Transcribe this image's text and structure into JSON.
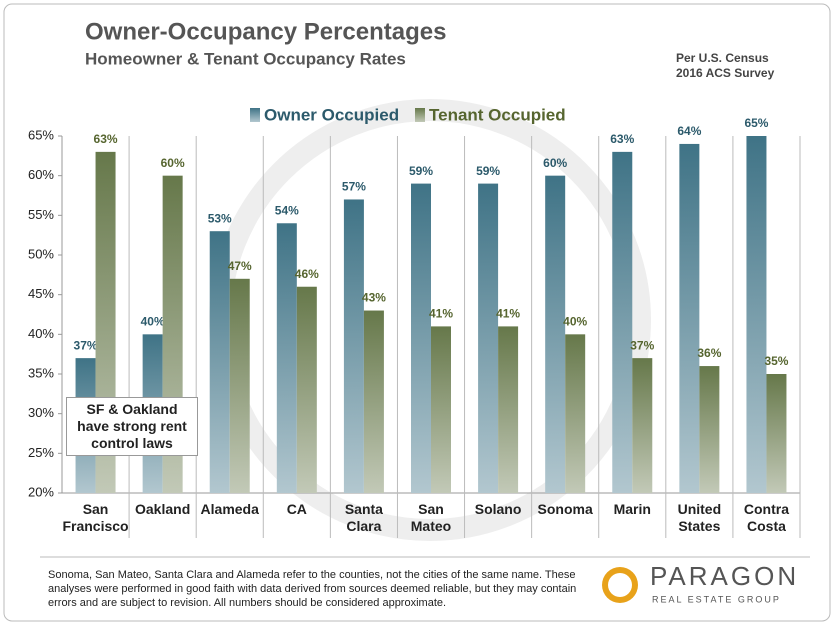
{
  "chart_data": {
    "type": "bar",
    "title": "Owner-Occupancy Percentages",
    "subtitle": "Homeowner & Tenant Occupancy Rates",
    "source": "Per U.S. Census 2016 ACS Survey",
    "annotation": "SF & Oakland have strong rent control laws",
    "footnote": "Sonoma, San Mateo, Santa Clara and Alameda refer to the counties, not the cities of the same name. These analyses were performed in good faith with data derived from sources deemed reliable, but they may contain errors and are subject to revision.  All numbers should be considered approximate.",
    "logo": "PARAGON",
    "logo_subtitle": "REAL ESTATE GROUP",
    "categories": [
      "San Francisco",
      "Oakland",
      "Alameda",
      "CA",
      "Santa Clara",
      "San Mateo",
      "Solano",
      "Sonoma",
      "Marin",
      "United States",
      "Contra Costa"
    ],
    "series": [
      {
        "name": "Owner Occupied",
        "color": "#3f7386",
        "label_color": "#2c5a6b",
        "values": [
          37,
          40,
          53,
          54,
          57,
          59,
          59,
          60,
          63,
          64,
          65
        ],
        "value_labels": [
          "37%",
          "40%",
          "53%",
          "54%",
          "57%",
          "59%",
          "59%",
          "60%",
          "63%",
          "64%",
          "65%"
        ]
      },
      {
        "name": "Tenant Occupied",
        "color": "#66784a",
        "label_color": "#56652f",
        "values": [
          63,
          60,
          47,
          46,
          43,
          41,
          41,
          40,
          37,
          36,
          35
        ],
        "value_labels": [
          "63%",
          "60%",
          "47%",
          "46%",
          "43%",
          "41%",
          "41%",
          "40%",
          "37%",
          "36%",
          "35%"
        ]
      }
    ],
    "ylim": [
      20,
      65
    ],
    "yticks": [
      {
        "value": 20,
        "label": "20%"
      },
      {
        "value": 25,
        "label": "25%"
      },
      {
        "value": 30,
        "label": "30%"
      },
      {
        "value": 35,
        "label": "35%"
      },
      {
        "value": 40,
        "label": "40%"
      },
      {
        "value": 45,
        "label": "45%"
      },
      {
        "value": 50,
        "label": "50%"
      },
      {
        "value": 55,
        "label": "55%"
      },
      {
        "value": 60,
        "label": "60%"
      },
      {
        "value": 65,
        "label": "65%"
      }
    ],
    "grid": false
  }
}
